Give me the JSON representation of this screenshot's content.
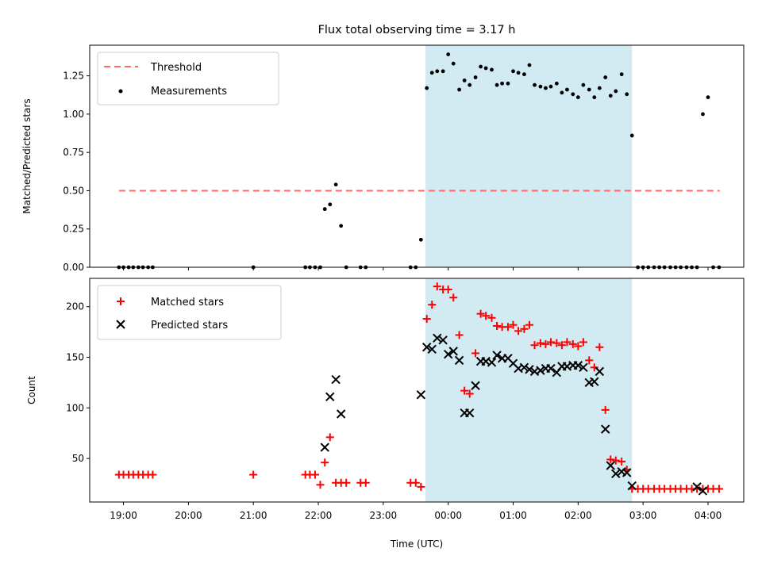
{
  "chart_data": [
    {
      "type": "scatter",
      "title": "Flux total observing time = 3.17 h",
      "xlabel": "",
      "ylabel": "Matched/Predicted stars",
      "ylim": [
        0,
        1.45
      ],
      "yticks": [
        "0.00",
        "0.25",
        "0.50",
        "0.75",
        "1.00",
        "1.25"
      ],
      "shaded_interval_hours": [
        23.65,
        26.83
      ],
      "shade_color": "#add8e6",
      "threshold": {
        "name": "Threshold",
        "value": 0.5,
        "x_range_hours": [
          18.93,
          28.18
        ],
        "color": "#ff6b6b"
      },
      "legend": {
        "position": "upper-left",
        "entries": [
          "Threshold",
          "Measurements"
        ]
      },
      "series": [
        {
          "name": "Measurements",
          "marker": "dot",
          "color": "#000000",
          "x_hours": [
            18.93,
            19.0,
            19.08,
            19.15,
            19.23,
            19.3,
            19.38,
            19.45,
            21.0,
            21.8,
            21.87,
            21.95,
            22.03,
            22.1,
            22.18,
            22.27,
            22.35,
            22.43,
            22.65,
            22.73,
            23.42,
            23.5,
            23.58,
            23.67,
            23.75,
            23.83,
            23.92,
            24.0,
            24.08,
            24.17,
            24.25,
            24.33,
            24.42,
            24.5,
            24.58,
            24.67,
            24.75,
            24.83,
            24.92,
            25.0,
            25.08,
            25.17,
            25.25,
            25.33,
            25.42,
            25.5,
            25.58,
            25.67,
            25.75,
            25.83,
            25.92,
            26.0,
            26.08,
            26.17,
            26.25,
            26.33,
            26.42,
            26.5,
            26.58,
            26.67,
            26.75,
            26.83,
            26.92,
            27.0,
            27.08,
            27.17,
            27.25,
            27.33,
            27.42,
            27.5,
            27.58,
            27.67,
            27.75,
            27.83,
            27.92,
            28.0,
            28.08,
            28.17
          ],
          "y": [
            0,
            0,
            0,
            0,
            0,
            0,
            0,
            0,
            0,
            0,
            0,
            0,
            0,
            0.38,
            0.41,
            0.54,
            0.27,
            0,
            0,
            0,
            0,
            0,
            0.18,
            1.17,
            1.27,
            1.28,
            1.28,
            1.39,
            1.33,
            1.16,
            1.22,
            1.19,
            1.24,
            1.31,
            1.3,
            1.29,
            1.19,
            1.2,
            1.2,
            1.28,
            1.27,
            1.26,
            1.32,
            1.19,
            1.18,
            1.17,
            1.18,
            1.2,
            1.14,
            1.16,
            1.13,
            1.11,
            1.19,
            1.16,
            1.11,
            1.17,
            1.24,
            1.12,
            1.15,
            1.26,
            1.13,
            0.86,
            0,
            0,
            0,
            0,
            0,
            0,
            0,
            0,
            0,
            0,
            0,
            0,
            1.0,
            1.11,
            0,
            0
          ]
        }
      ]
    },
    {
      "type": "scatter",
      "xlabel": "Time (UTC)",
      "ylabel": "Count",
      "ylim": [
        7,
        228
      ],
      "yticks": [
        "50",
        "100",
        "150",
        "200"
      ],
      "xticks": [
        "19:00",
        "20:00",
        "21:00",
        "22:00",
        "23:00",
        "00:00",
        "01:00",
        "02:00",
        "03:00",
        "04:00"
      ],
      "shaded_interval_hours": [
        23.65,
        26.83
      ],
      "legend": {
        "position": "upper-left",
        "entries": [
          "Matched stars",
          "Predicted stars"
        ]
      },
      "series": [
        {
          "name": "Matched stars",
          "marker": "plus",
          "color": "#ff0000",
          "x_hours": [
            18.93,
            19.0,
            19.08,
            19.15,
            19.23,
            19.3,
            19.38,
            19.45,
            21.0,
            21.8,
            21.87,
            21.95,
            22.03,
            22.1,
            22.18,
            22.27,
            22.35,
            22.43,
            22.65,
            22.73,
            23.42,
            23.5,
            23.58,
            23.67,
            23.75,
            23.83,
            23.92,
            24.0,
            24.08,
            24.17,
            24.25,
            24.33,
            24.42,
            24.5,
            24.58,
            24.67,
            24.75,
            24.83,
            24.92,
            25.0,
            25.08,
            25.17,
            25.25,
            25.33,
            25.42,
            25.5,
            25.58,
            25.67,
            25.75,
            25.83,
            25.92,
            26.0,
            26.08,
            26.17,
            26.25,
            26.33,
            26.42,
            26.5,
            26.58,
            26.67,
            26.75,
            26.83,
            26.92,
            27.0,
            27.08,
            27.17,
            27.25,
            27.33,
            27.42,
            27.5,
            27.58,
            27.67,
            27.75,
            27.83,
            27.92,
            28.0,
            28.08,
            28.17
          ],
          "y": [
            34,
            34,
            34,
            34,
            34,
            34,
            34,
            34,
            34,
            34,
            34,
            34,
            24,
            46,
            71,
            26,
            26,
            26,
            26,
            26,
            26,
            26,
            22,
            188,
            202,
            220,
            217,
            217,
            209,
            172,
            117,
            114,
            154,
            193,
            191,
            189,
            181,
            180,
            180,
            182,
            176,
            178,
            182,
            162,
            164,
            163,
            165,
            164,
            162,
            165,
            163,
            161,
            165,
            147,
            140,
            160,
            98,
            49,
            48,
            47,
            39,
            20,
            20,
            20,
            20,
            20,
            20,
            20,
            20,
            20,
            20,
            20,
            20,
            20,
            20,
            20,
            20,
            20
          ]
        },
        {
          "name": "Predicted stars",
          "marker": "x",
          "color": "#000000",
          "x_hours": [
            22.1,
            22.18,
            22.27,
            22.35,
            23.58,
            23.67,
            23.75,
            23.83,
            23.92,
            24.0,
            24.08,
            24.17,
            24.25,
            24.33,
            24.42,
            24.5,
            24.58,
            24.67,
            24.75,
            24.83,
            24.92,
            25.0,
            25.08,
            25.17,
            25.25,
            25.33,
            25.42,
            25.5,
            25.58,
            25.67,
            25.75,
            25.83,
            25.92,
            26.0,
            26.08,
            26.17,
            26.25,
            26.33,
            26.42,
            26.5,
            26.58,
            26.67,
            26.75,
            26.83,
            27.83,
            27.92
          ],
          "y": [
            61,
            111,
            128,
            94,
            113,
            160,
            158,
            169,
            167,
            153,
            156,
            147,
            95,
            95,
            122,
            146,
            146,
            145,
            152,
            149,
            149,
            144,
            139,
            140,
            138,
            136,
            137,
            139,
            139,
            135,
            141,
            141,
            142,
            142,
            140,
            125,
            126,
            136,
            79,
            43,
            35,
            37,
            36,
            23,
            22,
            18
          ]
        }
      ]
    }
  ]
}
